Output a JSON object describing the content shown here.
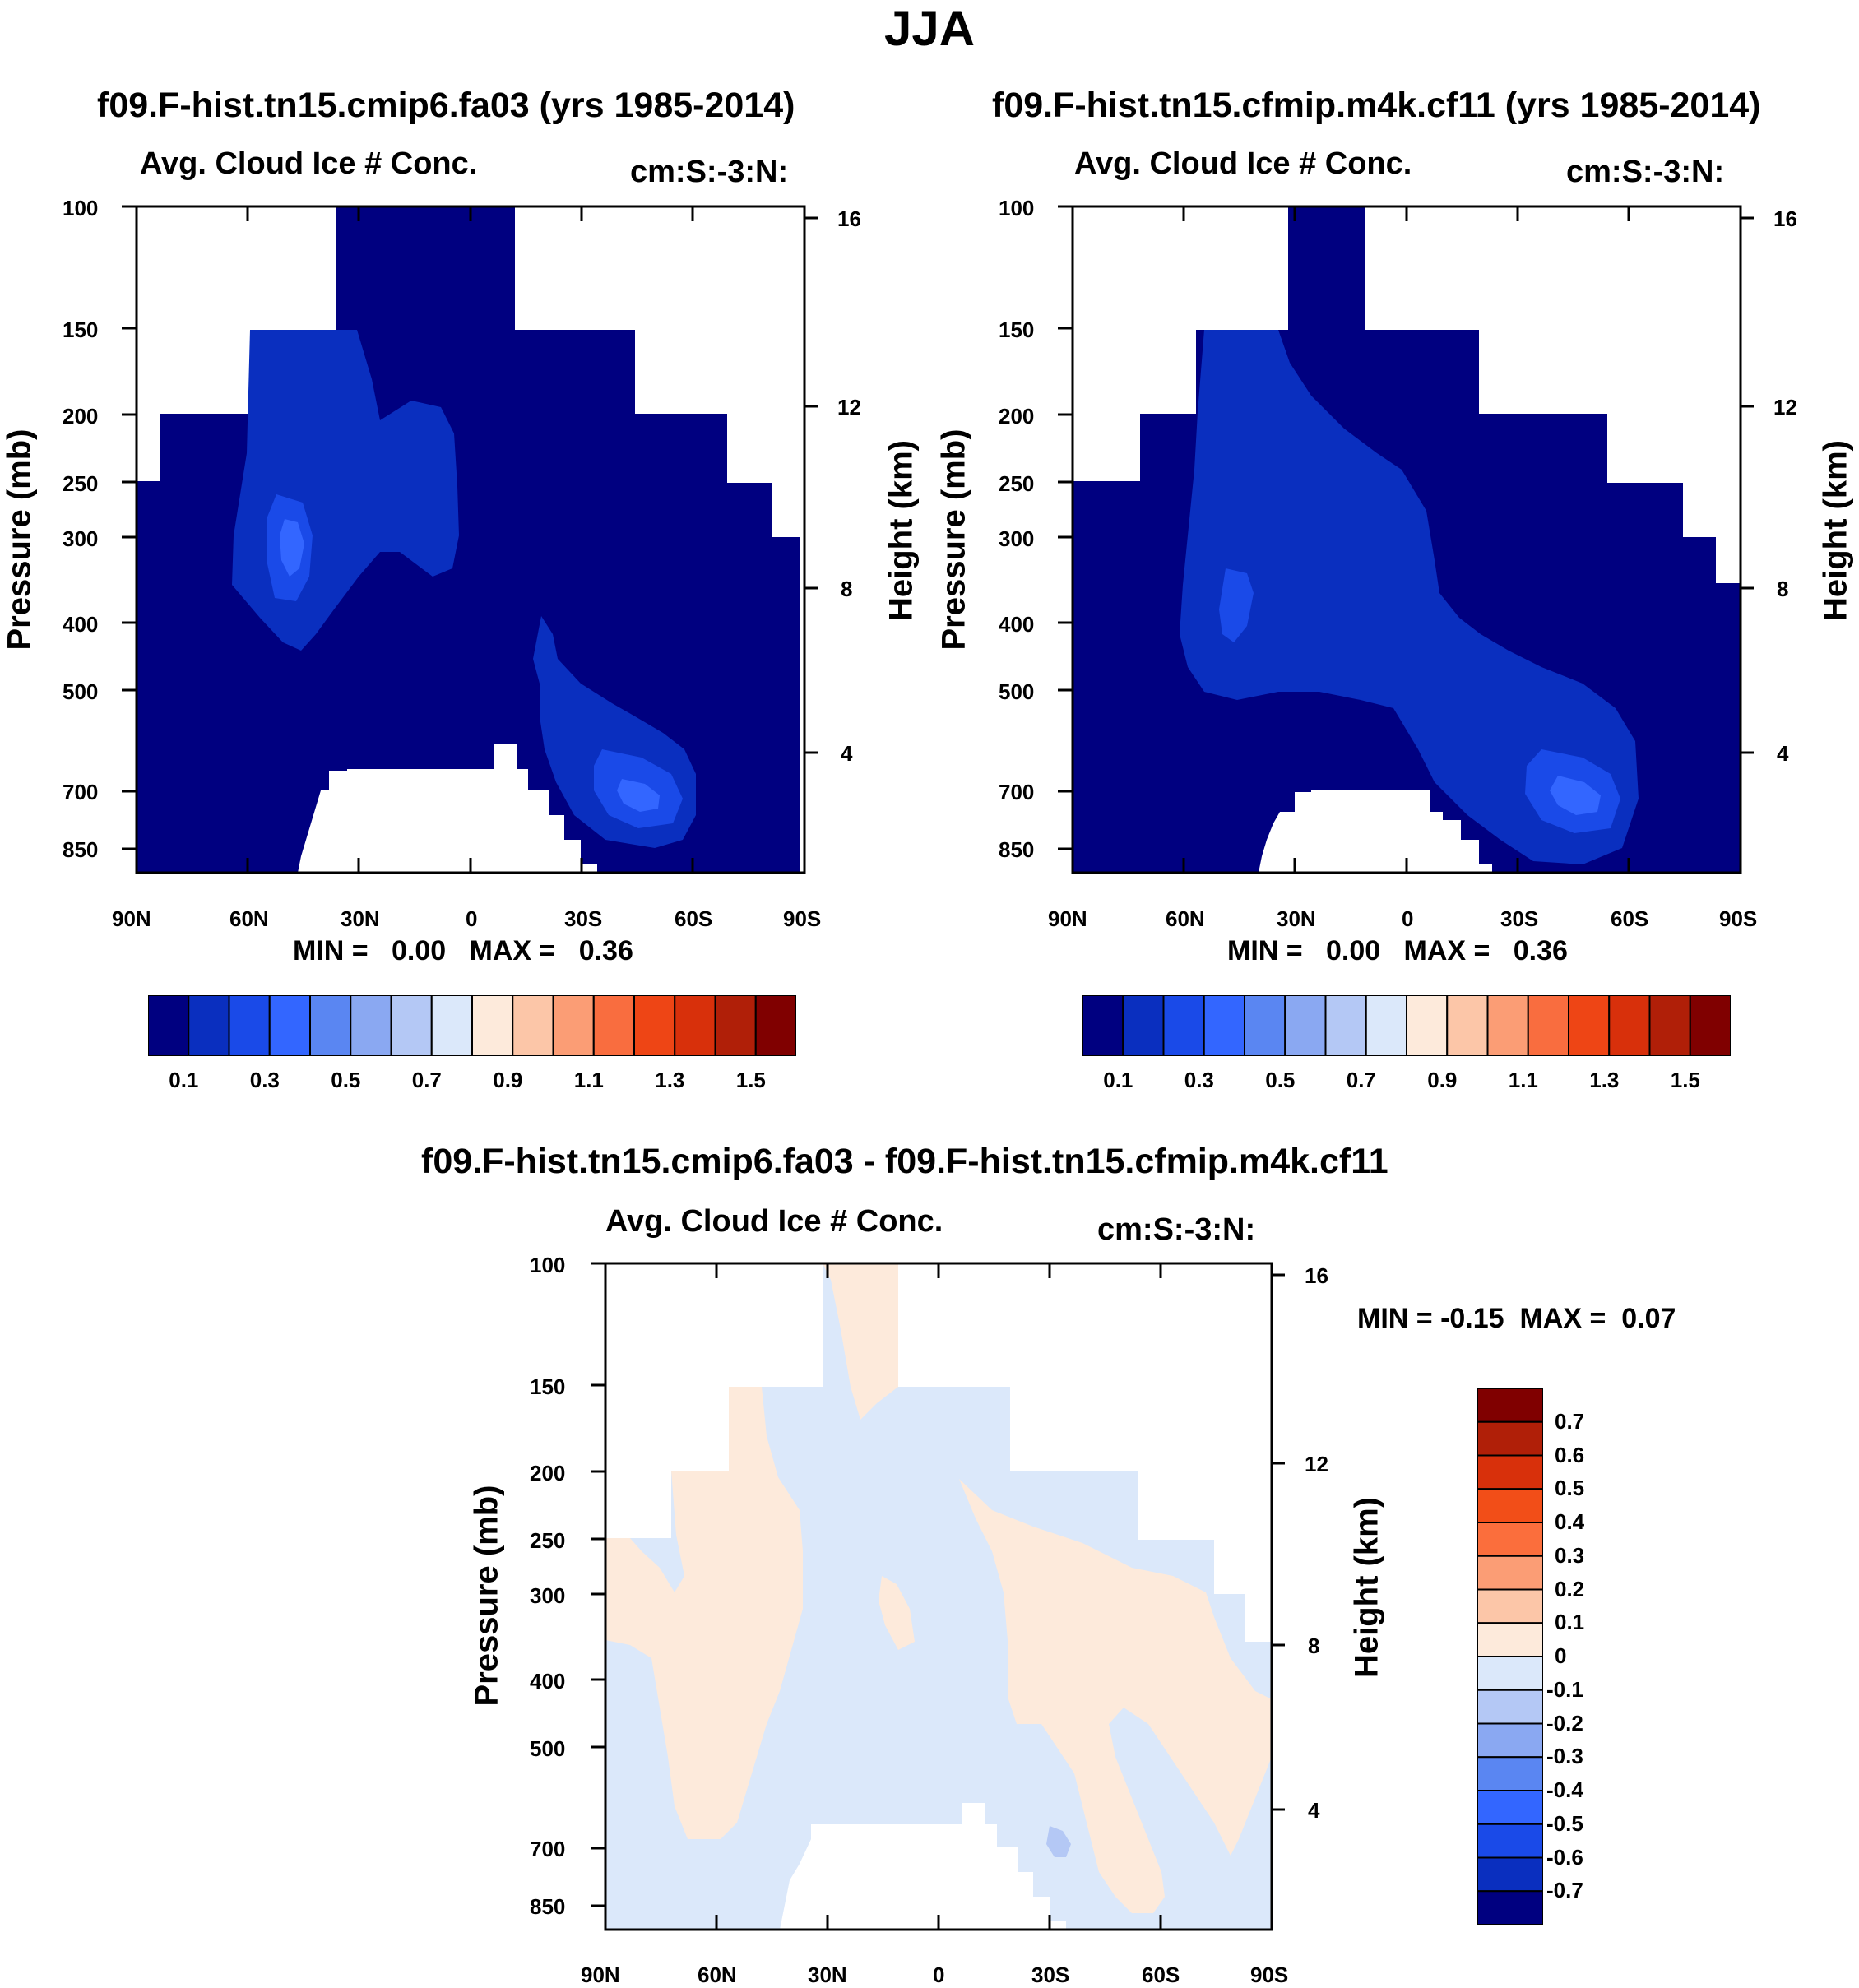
{
  "title": "JJA",
  "colorbar_levels": [
    "0.1",
    "0.3",
    "0.5",
    "0.7",
    "0.9",
    "1.1",
    "1.3",
    "1.5"
  ],
  "colorbar_colors": [
    "#000080",
    "#0a2fbf",
    "#1a4ae8",
    "#3366ff",
    "#5a86f2",
    "#8aa8f2",
    "#b4c8f5",
    "#dbe8fa",
    "#fdeadb",
    "#fcc6a8",
    "#fb9d75",
    "#f96d3f",
    "#ee4515",
    "#d8300b",
    "#b01f08",
    "#800000"
  ],
  "diff_colorbar_levels": [
    "0.7",
    "0.6",
    "0.5",
    "0.4",
    "0.3",
    "0.2",
    "0.1",
    "0",
    "-0.1",
    "-0.2",
    "-0.3",
    "-0.4",
    "-0.5",
    "-0.6",
    "-0.7"
  ],
  "diff_colorbar_colors": [
    "#800000",
    "#b01f08",
    "#d8300b",
    "#f24e18",
    "#fb6e3c",
    "#fb9d75",
    "#fcc6a8",
    "#fdeadb",
    "#dbe8fa",
    "#b4c8f5",
    "#8aa8f2",
    "#5a86f2",
    "#3366ff",
    "#1a4ae8",
    "#0a2fbf",
    "#000080"
  ],
  "chart_data": [
    {
      "type": "heatmap",
      "title": "f09.F-hist.tn15.cmip6.fa03 (yrs 1985-2014)",
      "left_label": "Avg. Cloud Ice # Conc.",
      "right_label": "cm:S:-3:N:",
      "xlabel": "",
      "ylabel": "Pressure (mb)",
      "ylabel_right": "Height (km)",
      "x_ticks": [
        "90N",
        "60N",
        "30N",
        "0",
        "30S",
        "60S",
        "90S"
      ],
      "y_ticks": [
        "100",
        "150",
        "200",
        "250",
        "300",
        "400",
        "500",
        "700",
        "850"
      ],
      "y_right_ticks": [
        "16",
        "12",
        "8",
        "4"
      ],
      "min_label": "MIN =",
      "min_value": "0.00",
      "max_label": "MAX =",
      "max_value": "0.36",
      "ylim_mb": [
        900,
        100
      ],
      "xlim_deg": [
        90,
        -90
      ]
    },
    {
      "type": "heatmap",
      "title": "f09.F-hist.tn15.cfmip.m4k.cf11 (yrs 1985-2014)",
      "left_label": "Avg. Cloud Ice # Conc.",
      "right_label": "cm:S:-3:N:",
      "xlabel": "",
      "ylabel": "Pressure (mb)",
      "ylabel_right": "Height (km)",
      "x_ticks": [
        "90N",
        "60N",
        "30N",
        "0",
        "30S",
        "60S",
        "90S"
      ],
      "y_ticks": [
        "100",
        "150",
        "200",
        "250",
        "300",
        "400",
        "500",
        "700",
        "850"
      ],
      "y_right_ticks": [
        "16",
        "12",
        "8",
        "4"
      ],
      "min_label": "MIN =",
      "min_value": "0.00",
      "max_label": "MAX =",
      "max_value": "0.36",
      "ylim_mb": [
        900,
        100
      ],
      "xlim_deg": [
        90,
        -90
      ]
    },
    {
      "type": "heatmap",
      "title": "f09.F-hist.tn15.cmip6.fa03 - f09.F-hist.tn15.cfmip.m4k.cf11",
      "left_label": "Avg. Cloud Ice # Conc.",
      "right_label": "cm:S:-3:N:",
      "xlabel": "",
      "ylabel": "Pressure (mb)",
      "ylabel_right": "Height (km)",
      "x_ticks": [
        "90N",
        "60N",
        "30N",
        "0",
        "30S",
        "60S",
        "90S"
      ],
      "y_ticks": [
        "100",
        "150",
        "200",
        "250",
        "300",
        "400",
        "500",
        "700",
        "850"
      ],
      "y_right_ticks": [
        "16",
        "12",
        "8",
        "4"
      ],
      "min_label": "MIN =",
      "min_value": "-0.15",
      "max_label": "MAX =",
      "max_value": "0.07",
      "ylim_mb": [
        900,
        100
      ],
      "xlim_deg": [
        90,
        -90
      ]
    }
  ]
}
